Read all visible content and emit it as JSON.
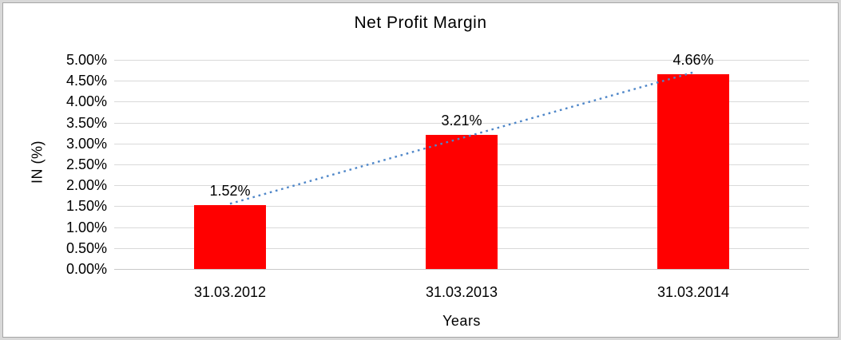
{
  "window": {
    "frame_outer_color": "#d8d8d8",
    "frame_line_color": "#a6a6a6",
    "background": "#ffffff"
  },
  "chart_data": {
    "type": "bar",
    "title": "Net Profit Margin",
    "xlabel": "Years",
    "ylabel": "IN (%)",
    "categories": [
      "31.03.2012",
      "31.03.2013",
      "31.03.2014"
    ],
    "values": [
      1.52,
      3.21,
      4.66
    ],
    "data_labels": [
      "1.52%",
      "3.21%",
      "4.66%"
    ],
    "ylim": [
      0,
      5
    ],
    "ytick_step": 0.5,
    "ytick_labels": [
      "0.00%",
      "0.50%",
      "1.00%",
      "1.50%",
      "2.00%",
      "2.50%",
      "3.00%",
      "3.50%",
      "4.00%",
      "4.50%",
      "5.00%"
    ],
    "grid": true,
    "legend": "none",
    "bar_color": "#FF0000",
    "gridline_color": "#D9D9D9",
    "baseline_color": "#C9C9C9",
    "text_color": "#000000",
    "trendline": {
      "type": "linear",
      "style": "dotted",
      "color": "#4E86C8"
    }
  }
}
